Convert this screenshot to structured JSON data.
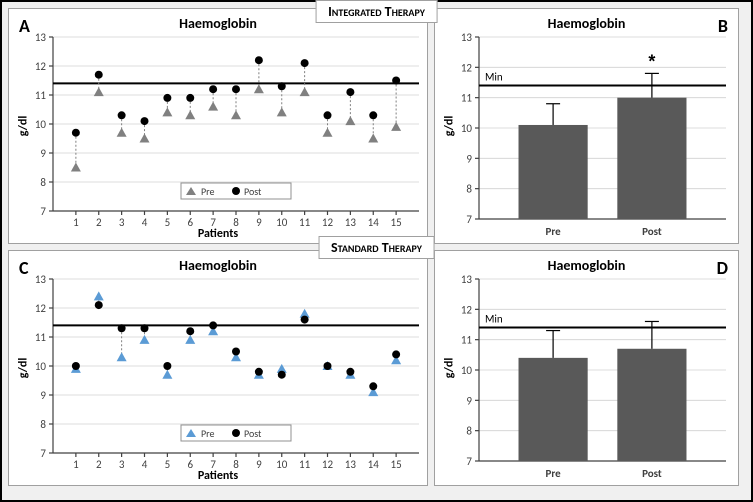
{
  "therapy_labels": {
    "top": "Integrated Therapy",
    "mid": "Standard Therapy"
  },
  "letters": {
    "A": "A",
    "B": "B",
    "C": "C",
    "D": "D"
  },
  "titles": {
    "A": "Haemoglobin",
    "B": "Haemoglobin",
    "C": "Haemoglobin",
    "D": "Haemoglobin"
  },
  "axis": {
    "y": "g/dl",
    "x": "Patients"
  },
  "scatter": {
    "ylim": [
      7,
      13
    ],
    "yticks": [
      7,
      8,
      9,
      10,
      11,
      12,
      13
    ],
    "xticks": [
      1,
      2,
      3,
      4,
      5,
      6,
      7,
      8,
      9,
      10,
      11,
      12,
      13,
      14,
      15
    ],
    "refline": 11.4,
    "legendPre": "Pre",
    "legendPost": "Post",
    "A": {
      "preColor": "#808080",
      "postColor": "#000000",
      "pre": [
        8.5,
        11.1,
        9.7,
        9.5,
        10.4,
        10.3,
        10.6,
        10.3,
        11.2,
        10.4,
        11.1,
        9.7,
        10.1,
        9.5,
        9.9
      ],
      "post": [
        9.7,
        11.7,
        10.3,
        10.1,
        10.9,
        10.9,
        11.2,
        11.2,
        12.2,
        11.3,
        12.1,
        10.3,
        11.1,
        10.3,
        11.5
      ]
    },
    "C": {
      "preColor": "#5b9bd5",
      "postColor": "#000000",
      "pre": [
        9.9,
        12.4,
        10.3,
        10.9,
        9.7,
        10.9,
        11.2,
        10.3,
        9.7,
        9.9,
        11.8,
        10.0,
        9.7,
        9.1,
        10.2
      ],
      "post": [
        10.0,
        12.1,
        11.3,
        11.3,
        10.0,
        11.2,
        11.4,
        10.5,
        9.8,
        9.7,
        11.6,
        10.0,
        9.8,
        9.3,
        10.4
      ]
    }
  },
  "bars": {
    "ylim": [
      7,
      13
    ],
    "yticks": [
      7,
      8,
      9,
      10,
      11,
      12,
      13
    ],
    "categories": [
      "Pre",
      "Post"
    ],
    "refline": 11.4,
    "minLabel": "Min",
    "barColor": "#595959",
    "B": {
      "values": [
        10.1,
        11.0
      ],
      "err": [
        0.7,
        0.8
      ],
      "star": true
    },
    "D": {
      "values": [
        10.4,
        10.7
      ],
      "err": [
        0.9,
        0.9
      ],
      "star": false
    }
  }
}
